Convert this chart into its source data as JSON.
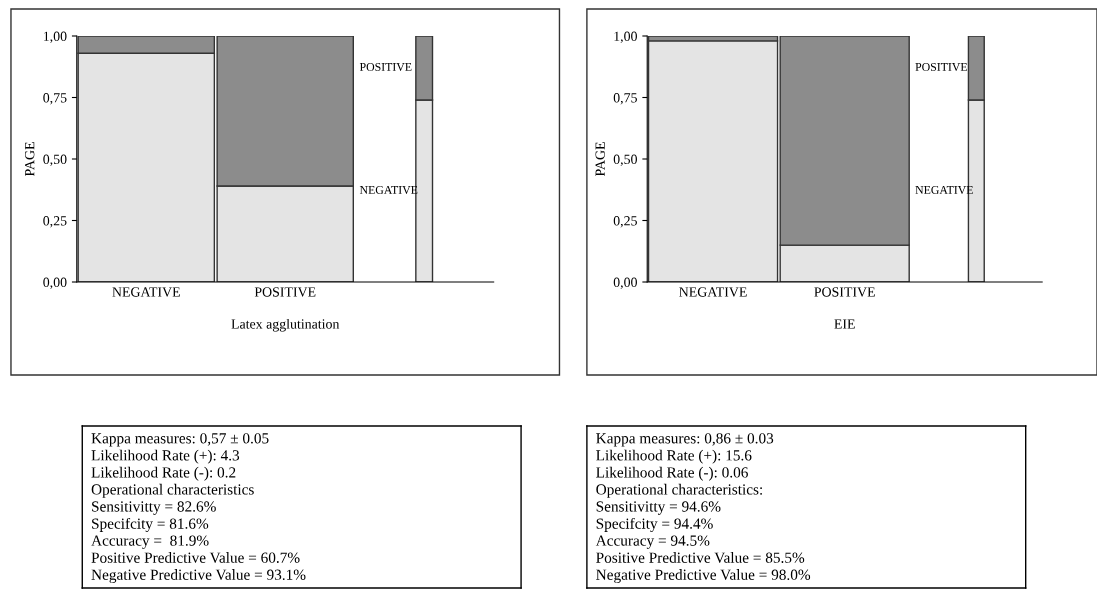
{
  "chart_data": [
    {
      "type": "bar",
      "stacked": true,
      "ylabel": "PAGE",
      "xlabel": "Latex agglutination",
      "categories": [
        "NEGATIVE",
        "POSITIVE",
        null
      ],
      "ylim": [
        0,
        1
      ],
      "yticks": [
        {
          "value": 0,
          "label": "0,00"
        },
        {
          "value": 0.25,
          "label": "0,25"
        },
        {
          "value": 0.5,
          "label": "0,50"
        },
        {
          "value": 0.75,
          "label": "0,75"
        },
        {
          "value": 1,
          "label": "1,00"
        }
      ],
      "series": [
        {
          "name": "NEGATIVE",
          "color": "#e4e4e4",
          "values": [
            0.93,
            0.39,
            0.74
          ]
        },
        {
          "name": "POSITIVE",
          "color": "#8c8c8c",
          "values": [
            0.07,
            0.61,
            0.26
          ]
        }
      ]
    },
    {
      "type": "other",
      "annotations": [
        "Kappa measures: 0,57 ± 0.05",
        "Likelihood Rate (+): 4.3",
        "Likelihood Rate (-): 0.2",
        "Operational characteristics",
        "Sensitivitty = 82.6%",
        "Specifcity = 81.6%",
        "Accuracy =  81.9%",
        "Positive Predictive Value = 60.7%",
        "Negative Predictive Value = 93.1%"
      ]
    },
    {
      "type": "bar",
      "stacked": true,
      "ylabel": "PAGE",
      "xlabel": "EIE",
      "categories": [
        "NEGATIVE",
        "POSITIVE",
        null
      ],
      "ylim": [
        0,
        1
      ],
      "yticks": [
        {
          "value": 0,
          "label": "0,00"
        },
        {
          "value": 0.25,
          "label": "0,25"
        },
        {
          "value": 0.5,
          "label": "0,50"
        },
        {
          "value": 0.75,
          "label": "0,75"
        },
        {
          "value": 1,
          "label": "1,00"
        }
      ],
      "series": [
        {
          "name": "NEGATIVE",
          "color": "#e4e4e4",
          "values": [
            0.98,
            0.15,
            0.74
          ]
        },
        {
          "name": "POSITIVE",
          "color": "#8c8c8c",
          "values": [
            0.02,
            0.85,
            0.26
          ]
        }
      ]
    },
    {
      "type": "other",
      "annotations": [
        "Kappa measures: 0,86 ± 0.03",
        "Likelihood Rate (+): 15.6",
        "Likelihood Rate (-): 0.06",
        "Operational characteristics:",
        "Sensitivitty = 94.6%",
        "Specifcity = 94.4%",
        "Accuracy = 94.5%",
        "Positive Predictive Value = 85.5%",
        "Negative Predictive Value = 98.0%"
      ]
    }
  ]
}
